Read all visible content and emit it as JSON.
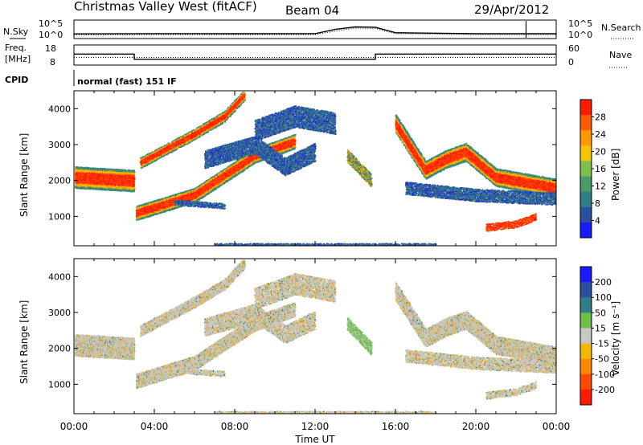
{
  "header": {
    "station": "Christmas Valley West (fitACF)",
    "beam": "Beam 04",
    "date": "29/Apr/2012"
  },
  "noise_panel": {
    "left_label": "N.Sky",
    "right_label": "N.Search",
    "left_ticks": [
      "10^5",
      "10^0"
    ],
    "right_ticks": [
      "10^5",
      "10^0"
    ]
  },
  "freq_panel": {
    "left_label_1": "Freq.",
    "left_label_2": "[MHz]",
    "right_label": "Nave",
    "left_ticks": [
      "18",
      "8"
    ],
    "right_ticks": [
      "60",
      "0"
    ]
  },
  "cpid": {
    "label": "CPID",
    "mode": "normal (fast) 151 IF"
  },
  "panels": {
    "power_ylabel": "Slant Range [km]",
    "velocity_ylabel": "Slant Range [km]",
    "power_colorbar_label": "Power [dB]",
    "velocity_colorbar_label": "Velocity [m s⁻¹]"
  },
  "colors": {
    "power_scale": [
      "#1a1aff",
      "#2c4ea0",
      "#2f7f86",
      "#4a9a6a",
      "#7fc04a",
      "#f5c400",
      "#ff9900",
      "#ff5a00",
      "#ff1a00"
    ],
    "velocity_scale": [
      "#1a1aff",
      "#2c4ea0",
      "#2f7f86",
      "#6fc04a",
      "#c8c8c8",
      "#f5b800",
      "#ff8800",
      "#ff4a00",
      "#ff1a00"
    ]
  },
  "chart_data": [
    {
      "type": "line",
      "title": "N.Sky / N.Search",
      "xlabel": "",
      "ylabel": "",
      "y_scale": "log",
      "ylim": [
        1,
        100000
      ],
      "x": [
        "00:00",
        "04:00",
        "08:00",
        "12:00",
        "13:00",
        "14:00",
        "15:00",
        "16:00",
        "20:00",
        "22:30",
        "24:00"
      ],
      "series": [
        {
          "name": "N.Sky",
          "values": [
            10,
            12,
            11,
            12,
            300,
            2000,
            1500,
            25,
            12,
            12,
            12
          ]
        },
        {
          "name": "N.Search",
          "values": [
            5,
            6,
            6,
            6,
            80,
            800,
            600,
            12,
            6,
            6,
            6
          ]
        }
      ]
    },
    {
      "type": "line",
      "title": "Freq. / Nave",
      "xlabel": "",
      "ylabel": "Freq. [MHz]",
      "ylim": [
        8,
        18
      ],
      "x": [
        "00:00",
        "03:00",
        "03:00",
        "15:00",
        "15:00",
        "24:00"
      ],
      "series": [
        {
          "name": "Freq.",
          "values": [
            13.5,
            13.5,
            10.9,
            10.9,
            13.5,
            13.5
          ]
        },
        {
          "name": "Nave",
          "values": [
            30,
            30,
            30,
            30,
            30,
            30
          ]
        }
      ]
    },
    {
      "type": "heatmap",
      "title": "Power",
      "xlabel": "Time UT",
      "ylabel": "Slant Range [km]",
      "x_ticks": [
        "00:00",
        "04:00",
        "08:00",
        "12:00",
        "16:00",
        "20:00",
        "00:00"
      ],
      "y_ticks": [
        1000,
        2000,
        3000,
        4000
      ],
      "ylim": [
        180,
        4500
      ],
      "colorbar": {
        "label": "Power [dB]",
        "ticks": [
          4,
          8,
          12,
          16,
          20,
          24,
          28
        ],
        "range": [
          0,
          30
        ]
      }
    },
    {
      "type": "heatmap",
      "title": "Velocity",
      "xlabel": "Time UT",
      "ylabel": "Slant Range [km]",
      "x_ticks": [
        "00:00",
        "04:00",
        "08:00",
        "12:00",
        "16:00",
        "20:00",
        "00:00"
      ],
      "y_ticks": [
        1000,
        2000,
        3000,
        4000
      ],
      "ylim": [
        180,
        4500
      ],
      "colorbar": {
        "label": "Velocity [m s⁻¹]",
        "ticks": [
          200,
          100,
          50,
          15,
          -15,
          -50,
          -100,
          -200
        ],
        "range": [
          -250,
          250
        ]
      }
    }
  ],
  "x_axis_label": "Time UT"
}
